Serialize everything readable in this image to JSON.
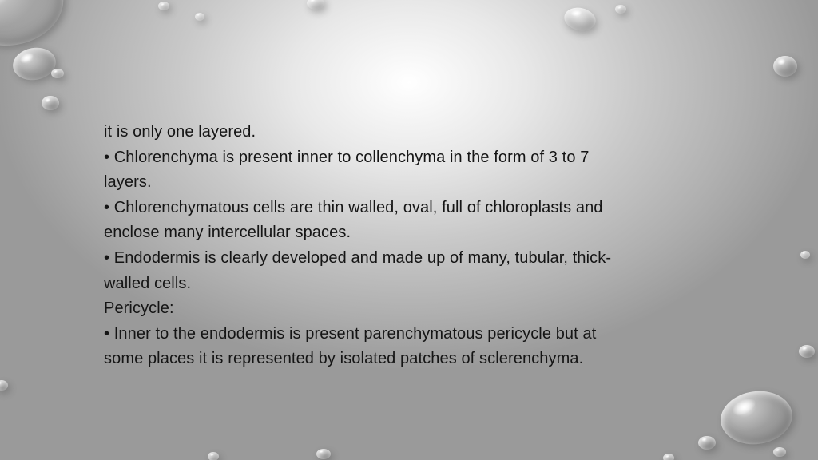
{
  "lines": {
    "l0": "it is only one layered.",
    "l1": "• Chlorenchyma is present inner to collenchyma in the form of 3 to 7",
    "l2": "layers.",
    "l3": "• Chlorenchymatous cells are thin walled, oval, full of chloroplasts and",
    "l4": "enclose many intercellular spaces.",
    "l5": "• Endodermis is clearly developed and made up of many, tubular, thick-",
    "l6": "walled cells.",
    "l7": "Pericycle:",
    "l8": "• Inner to the endodermis is present parenchymatous pericycle but at",
    "l9": "some places it is represented by isolated patches of sclerenchyma."
  }
}
